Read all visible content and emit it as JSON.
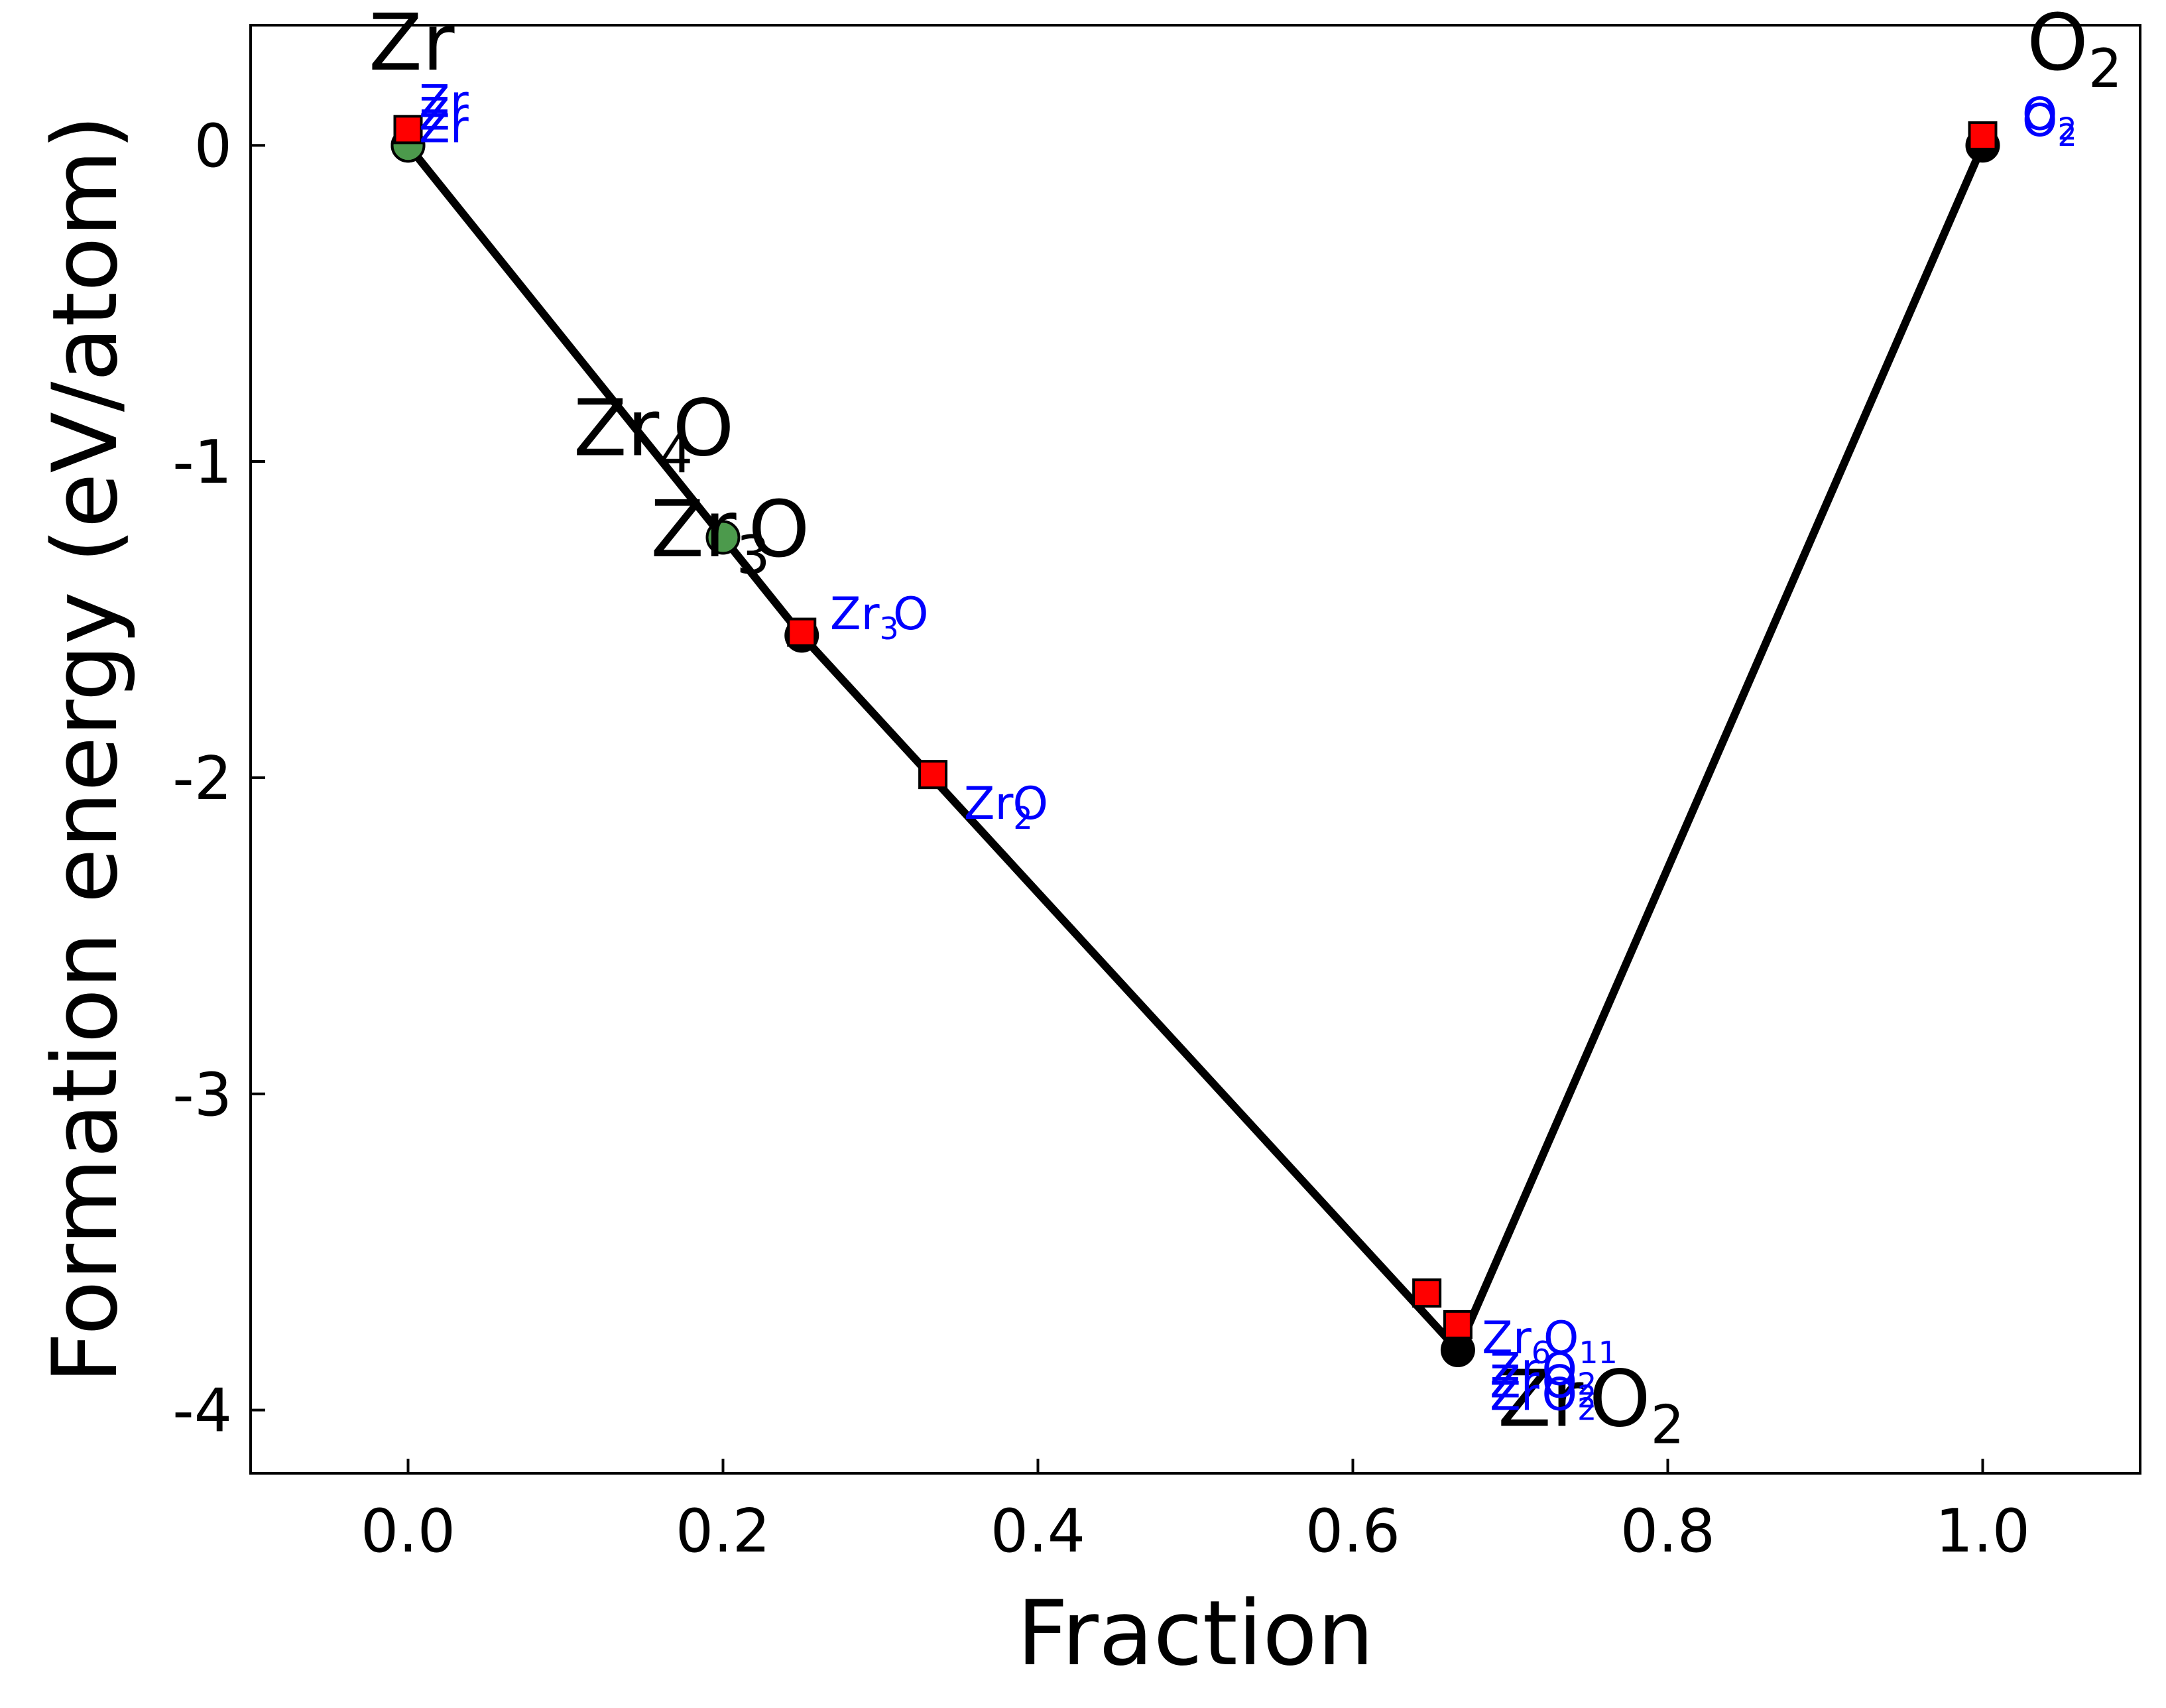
{
  "chart_data": {
    "type": "scatter",
    "title": "",
    "xlabel": "Fraction",
    "ylabel": "Formation energy (eV/atom)",
    "xlim": [
      -0.1,
      1.1
    ],
    "ylim": [
      -4.2,
      0.38
    ],
    "xticks": [
      0.0,
      0.2,
      0.4,
      0.6,
      0.8,
      1.0
    ],
    "xtick_labels": [
      "0.0",
      "0.2",
      "0.4",
      "0.6",
      "0.8",
      "1.0"
    ],
    "yticks": [
      0,
      -1,
      -2,
      -3,
      -4
    ],
    "ytick_labels": [
      "0",
      "-1",
      "-2",
      "-3",
      "-4"
    ],
    "grid": false,
    "tick_direction": "in",
    "colors": {
      "hull_line": "#000000",
      "stable_marker": "#000000",
      "green_marker": "#4c9a4c",
      "square_marker": "#ff0000",
      "blue_label": "#0000ff",
      "black_label": "#000000"
    },
    "series": [
      {
        "kind": "hull-line",
        "x": [
          0.0,
          0.25,
          0.6667,
          1.0
        ],
        "y": [
          0.0,
          -1.55,
          -3.81,
          0.0
        ]
      },
      {
        "kind": "stable-points",
        "marker": "circle-black",
        "x": [
          0.0,
          0.25,
          0.6667,
          1.0
        ],
        "y": [
          0.0,
          -1.55,
          -3.81,
          0.0
        ]
      },
      {
        "kind": "green-points",
        "marker": "circle-green",
        "x": [
          0.0,
          0.2
        ],
        "y": [
          0.0,
          -1.24
        ]
      },
      {
        "kind": "square-points",
        "marker": "square-red",
        "x": [
          0.0,
          0.25,
          0.3333,
          0.647,
          0.6667,
          1.0
        ],
        "y": [
          0.05,
          -1.54,
          -1.99,
          -3.63,
          -3.73,
          0.03
        ]
      }
    ],
    "annotations_black": [
      {
        "text": "Zr",
        "sub": "",
        "x": -0.025,
        "y": 0.24
      },
      {
        "text": "Zr",
        "sub": "4",
        "x": 0.105,
        "y": -0.98
      },
      {
        "text": "O",
        "sub": "",
        "x": 0.168,
        "y": -0.98
      },
      {
        "text": "Zr",
        "sub": "3",
        "x": 0.154,
        "y": -1.3
      },
      {
        "text": "O",
        "sub": "",
        "x": 0.216,
        "y": -1.3
      },
      {
        "text": "Zr",
        "sub": "",
        "x": 0.692,
        "y": -4.05
      },
      {
        "text": "O",
        "sub": "2",
        "x": 0.75,
        "y": -4.05
      },
      {
        "text": "O",
        "sub": "2",
        "x": 1.028,
        "y": 0.24
      }
    ],
    "annotations_blue": [
      {
        "text": "Zr",
        "sub": "",
        "x": 0.007,
        "y": 0.09
      },
      {
        "text": "Zr",
        "sub": "",
        "x": 0.007,
        "y": 0.05
      },
      {
        "text": "Zr",
        "sub": "",
        "x": 0.007,
        "y": 0.01
      },
      {
        "text": "Zr",
        "sub": "3",
        "x": 0.268,
        "y": -1.53
      },
      {
        "text": "O",
        "sub": "",
        "x": 0.308,
        "y": -1.53
      },
      {
        "text": "Zr",
        "sub": "2",
        "x": 0.353,
        "y": -2.13
      },
      {
        "text": "O",
        "sub": "",
        "x": 0.384,
        "y": -2.13
      },
      {
        "text": "Zr",
        "sub": "6",
        "x": 0.682,
        "y": -3.82
      },
      {
        "text": "O",
        "sub": "11",
        "x": 0.721,
        "y": -3.82
      },
      {
        "text": "Zr",
        "sub": "",
        "x": 0.687,
        "y": -3.92
      },
      {
        "text": "O",
        "sub": "2",
        "x": 0.72,
        "y": -3.92
      },
      {
        "text": "Zr",
        "sub": "",
        "x": 0.687,
        "y": -3.96
      },
      {
        "text": "O",
        "sub": "2",
        "x": 0.72,
        "y": -3.96
      },
      {
        "text": "Zr",
        "sub": "",
        "x": 0.687,
        "y": -4.0
      },
      {
        "text": "O",
        "sub": "2",
        "x": 0.72,
        "y": -4.0
      },
      {
        "text": "O",
        "sub": "2",
        "x": 1.025,
        "y": 0.05
      },
      {
        "text": "O",
        "sub": "2",
        "x": 1.025,
        "y": 0.03
      }
    ]
  }
}
